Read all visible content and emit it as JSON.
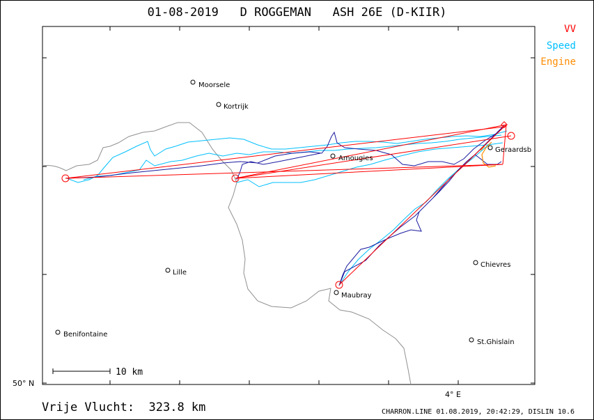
{
  "title": "01-08-2019   D ROGGEMAN   ASH 26E (D-KIIR)",
  "legend": [
    {
      "label": "VV",
      "color": "#ff0000"
    },
    {
      "label": "Speed",
      "color": "#00bfff"
    },
    {
      "label": "Engine",
      "color": "#ff8c00"
    }
  ],
  "towns": [
    {
      "name": "Moorsele"
    },
    {
      "name": "Kortrijk"
    },
    {
      "name": "Amougies"
    },
    {
      "name": "Geraardsb"
    },
    {
      "name": "Lille"
    },
    {
      "name": "Chievres"
    },
    {
      "name": "Maubray"
    },
    {
      "name": "Benifontaine"
    },
    {
      "name": "St.Ghislain"
    }
  ],
  "axes": {
    "lat_label": "50° N",
    "lon_label": "4° E"
  },
  "scale_label": "10 km",
  "distance_label": "Vrije Vlucht:  323.8 km",
  "footer": "CHARRON.LINE 01.08.2019, 20:42:29, DISLIN 10.6",
  "colors": {
    "task": "#ff0000",
    "track": "#00008b",
    "speed": "#00bfff",
    "engine": "#ff8c00",
    "border": "#808080"
  }
}
